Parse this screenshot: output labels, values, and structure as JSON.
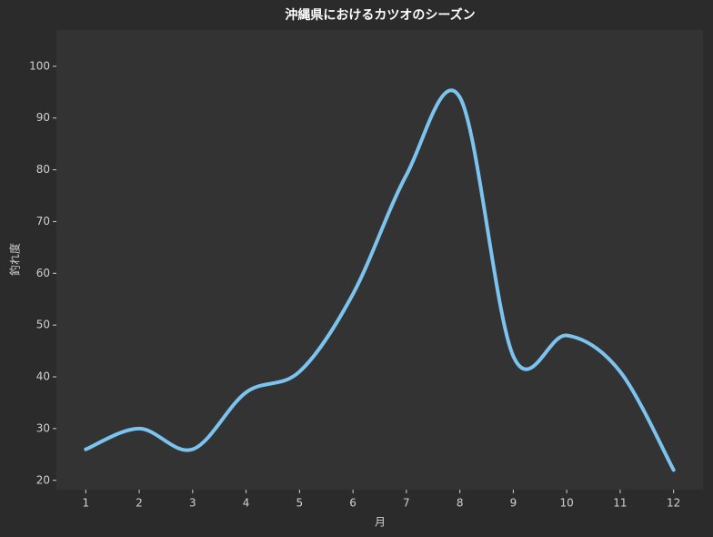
{
  "chart_data": {
    "type": "line",
    "title": "沖縄県におけるカツオのシーズン",
    "x_label": "月",
    "y_label": "釣れ度",
    "x": [
      1,
      2,
      3,
      4,
      5,
      6,
      7,
      8,
      9,
      10,
      11,
      12
    ],
    "series": [
      {
        "color": "#7cc4f0",
        "values": [
          26,
          30,
          26,
          37,
          41,
          56,
          79,
          94,
          44,
          48,
          41,
          22
        ]
      }
    ],
    "xlim": [
      0.45,
      12.55
    ],
    "xticks": [
      1,
      2,
      3,
      4,
      5,
      6,
      7,
      8,
      9,
      10,
      11,
      12
    ],
    "ylim": [
      18.2,
      107
    ],
    "yticks": [
      20,
      30,
      40,
      50,
      60,
      70,
      80,
      90,
      100
    ],
    "smooth": true,
    "grid": false
  }
}
